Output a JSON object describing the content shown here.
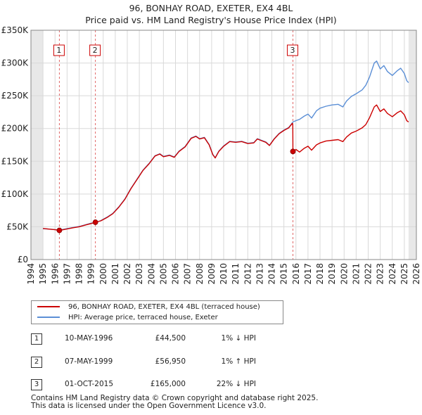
{
  "title_line1": "96, BONHAY ROAD, EXETER, EX4 4BL",
  "title_line2": "Price paid vs. HM Land Registry's House Price Index (HPI)",
  "chart_data": {
    "type": "line",
    "title": "96, BONHAY ROAD, EXETER, EX4 4BL — Price paid vs. HM Land Registry's House Price Index (HPI)",
    "x_range": [
      1994,
      2026
    ],
    "ylim": [
      0,
      350000
    ],
    "y_ticks": [
      {
        "value": 0,
        "label": "£0"
      },
      {
        "value": 50000,
        "label": "£50K"
      },
      {
        "value": 100000,
        "label": "£100K"
      },
      {
        "value": 150000,
        "label": "£150K"
      },
      {
        "value": 200000,
        "label": "£200K"
      },
      {
        "value": 250000,
        "label": "£250K"
      },
      {
        "value": 300000,
        "label": "£300K"
      },
      {
        "value": 350000,
        "label": "£350K"
      }
    ],
    "x_ticks": [
      "1994",
      "1995",
      "1996",
      "1997",
      "1998",
      "1999",
      "2000",
      "2001",
      "2002",
      "2003",
      "2004",
      "2005",
      "2006",
      "2007",
      "2008",
      "2009",
      "2010",
      "2011",
      "2012",
      "2013",
      "2014",
      "2015",
      "2016",
      "2017",
      "2018",
      "2019",
      "2020",
      "2021",
      "2022",
      "2023",
      "2024",
      "2025",
      "2026"
    ],
    "grid": true,
    "series": [
      {
        "name": "96, BONHAY ROAD, EXETER, EX4 4BL (terraced house)",
        "color": "#cc0000",
        "points": [
          [
            1995.0,
            47500
          ],
          [
            1995.5,
            46500
          ],
          [
            1996.0,
            45500
          ],
          [
            1996.36,
            44500
          ],
          [
            1996.8,
            46000
          ],
          [
            1997.5,
            48500
          ],
          [
            1998.0,
            50000
          ],
          [
            1998.6,
            53000
          ],
          [
            1999.0,
            55000
          ],
          [
            1999.35,
            56950
          ],
          [
            1999.8,
            59000
          ],
          [
            2000.3,
            64000
          ],
          [
            2000.8,
            70000
          ],
          [
            2001.3,
            80000
          ],
          [
            2001.8,
            92000
          ],
          [
            2002.3,
            108000
          ],
          [
            2002.8,
            122000
          ],
          [
            2003.3,
            136000
          ],
          [
            2003.8,
            146000
          ],
          [
            2004.3,
            158000
          ],
          [
            2004.7,
            161000
          ],
          [
            2005.0,
            157000
          ],
          [
            2005.5,
            159000
          ],
          [
            2005.9,
            156000
          ],
          [
            2006.3,
            165000
          ],
          [
            2006.8,
            172000
          ],
          [
            2007.3,
            185000
          ],
          [
            2007.7,
            188000
          ],
          [
            2008.0,
            184000
          ],
          [
            2008.4,
            186000
          ],
          [
            2008.8,
            175000
          ],
          [
            2009.1,
            160000
          ],
          [
            2009.3,
            155000
          ],
          [
            2009.6,
            165000
          ],
          [
            2010.0,
            173000
          ],
          [
            2010.5,
            180000
          ],
          [
            2011.0,
            179000
          ],
          [
            2011.5,
            180000
          ],
          [
            2012.0,
            177000
          ],
          [
            2012.5,
            178000
          ],
          [
            2012.8,
            184000
          ],
          [
            2013.2,
            181000
          ],
          [
            2013.5,
            179000
          ],
          [
            2013.8,
            174000
          ],
          [
            2014.2,
            184000
          ],
          [
            2014.6,
            192000
          ],
          [
            2015.0,
            197000
          ],
          [
            2015.4,
            201000
          ],
          [
            2015.7,
            208000
          ],
          [
            2015.74,
            205000
          ],
          [
            2015.75,
            165000
          ],
          [
            2016.0,
            168000
          ],
          [
            2016.3,
            164000
          ],
          [
            2016.7,
            170000
          ],
          [
            2017.0,
            173000
          ],
          [
            2017.3,
            167000
          ],
          [
            2017.7,
            175000
          ],
          [
            2018.0,
            178000
          ],
          [
            2018.5,
            181000
          ],
          [
            2019.0,
            182000
          ],
          [
            2019.5,
            183000
          ],
          [
            2019.9,
            180000
          ],
          [
            2020.2,
            187000
          ],
          [
            2020.6,
            193000
          ],
          [
            2021.0,
            196000
          ],
          [
            2021.5,
            201000
          ],
          [
            2021.8,
            206000
          ],
          [
            2022.1,
            216000
          ],
          [
            2022.5,
            233000
          ],
          [
            2022.7,
            236000
          ],
          [
            2023.0,
            226000
          ],
          [
            2023.3,
            230000
          ],
          [
            2023.6,
            223000
          ],
          [
            2024.0,
            218000
          ],
          [
            2024.4,
            224000
          ],
          [
            2024.7,
            227000
          ],
          [
            2025.0,
            221000
          ],
          [
            2025.2,
            212000
          ],
          [
            2025.35,
            210000
          ]
        ]
      },
      {
        "name": "HPI: Average price, terraced house, Exeter",
        "color": "#5b8fd6",
        "points": [
          [
            1995.0,
            47000
          ],
          [
            1995.5,
            46500
          ],
          [
            1996.0,
            45700
          ],
          [
            1996.36,
            45000
          ],
          [
            1996.8,
            46500
          ],
          [
            1997.5,
            49000
          ],
          [
            1998.0,
            50500
          ],
          [
            1998.6,
            53500
          ],
          [
            1999.0,
            55500
          ],
          [
            1999.35,
            56400
          ],
          [
            1999.8,
            59500
          ],
          [
            2000.3,
            64500
          ],
          [
            2000.8,
            70500
          ],
          [
            2001.3,
            80500
          ],
          [
            2001.8,
            92500
          ],
          [
            2002.3,
            108500
          ],
          [
            2002.8,
            122500
          ],
          [
            2003.3,
            136500
          ],
          [
            2003.8,
            146500
          ],
          [
            2004.3,
            158500
          ],
          [
            2004.7,
            161500
          ],
          [
            2005.0,
            157500
          ],
          [
            2005.5,
            159500
          ],
          [
            2005.9,
            156500
          ],
          [
            2006.3,
            165500
          ],
          [
            2006.8,
            172500
          ],
          [
            2007.3,
            185500
          ],
          [
            2007.7,
            188500
          ],
          [
            2008.0,
            184500
          ],
          [
            2008.4,
            186500
          ],
          [
            2008.8,
            175500
          ],
          [
            2009.1,
            160500
          ],
          [
            2009.3,
            155500
          ],
          [
            2009.6,
            165500
          ],
          [
            2010.0,
            173500
          ],
          [
            2010.5,
            180500
          ],
          [
            2011.0,
            179500
          ],
          [
            2011.5,
            180500
          ],
          [
            2012.0,
            177500
          ],
          [
            2012.5,
            178500
          ],
          [
            2012.8,
            184500
          ],
          [
            2013.2,
            181500
          ],
          [
            2013.5,
            179500
          ],
          [
            2013.8,
            174500
          ],
          [
            2014.2,
            184500
          ],
          [
            2014.6,
            192500
          ],
          [
            2015.0,
            197500
          ],
          [
            2015.4,
            201500
          ],
          [
            2015.75,
            210000
          ],
          [
            2016.0,
            212000
          ],
          [
            2016.3,
            214000
          ],
          [
            2016.7,
            219000
          ],
          [
            2017.0,
            222000
          ],
          [
            2017.3,
            216000
          ],
          [
            2017.7,
            227000
          ],
          [
            2018.0,
            231000
          ],
          [
            2018.5,
            234000
          ],
          [
            2019.0,
            236000
          ],
          [
            2019.5,
            237000
          ],
          [
            2019.9,
            233000
          ],
          [
            2020.2,
            242000
          ],
          [
            2020.6,
            249000
          ],
          [
            2021.0,
            253000
          ],
          [
            2021.5,
            259000
          ],
          [
            2021.8,
            266000
          ],
          [
            2022.1,
            278000
          ],
          [
            2022.5,
            300000
          ],
          [
            2022.7,
            303000
          ],
          [
            2023.0,
            291000
          ],
          [
            2023.3,
            296000
          ],
          [
            2023.6,
            287000
          ],
          [
            2024.0,
            281000
          ],
          [
            2024.4,
            288000
          ],
          [
            2024.7,
            292000
          ],
          [
            2025.0,
            284000
          ],
          [
            2025.2,
            273000
          ],
          [
            2025.35,
            270000
          ]
        ]
      }
    ],
    "sales": [
      {
        "label": "1",
        "x": 1996.36,
        "y": 44500
      },
      {
        "label": "2",
        "x": 1999.35,
        "y": 56950
      },
      {
        "label": "3",
        "x": 2015.75,
        "y": 165000
      }
    ],
    "shaded_ranges": [
      [
        1994,
        1995
      ],
      [
        2025.35,
        2026
      ]
    ]
  },
  "legend": {
    "items": [
      {
        "label": "96, BONHAY ROAD, EXETER, EX4 4BL (terraced house)",
        "color": "#cc0000"
      },
      {
        "label": "HPI: Average price, terraced house, Exeter",
        "color": "#5b8fd6"
      }
    ]
  },
  "transactions": [
    {
      "num": "1",
      "date": "10-MAY-1996",
      "price": "£44,500",
      "hpi": "1% ↓ HPI"
    },
    {
      "num": "2",
      "date": "07-MAY-1999",
      "price": "£56,950",
      "hpi": "1% ↑ HPI"
    },
    {
      "num": "3",
      "date": "01-OCT-2015",
      "price": "£165,000",
      "hpi": "22% ↓ HPI"
    }
  ],
  "footer": {
    "line1": "Contains HM Land Registry data © Crown copyright and database right 2025.",
    "line2": "This data is licensed under the Open Government Licence v3.0."
  }
}
